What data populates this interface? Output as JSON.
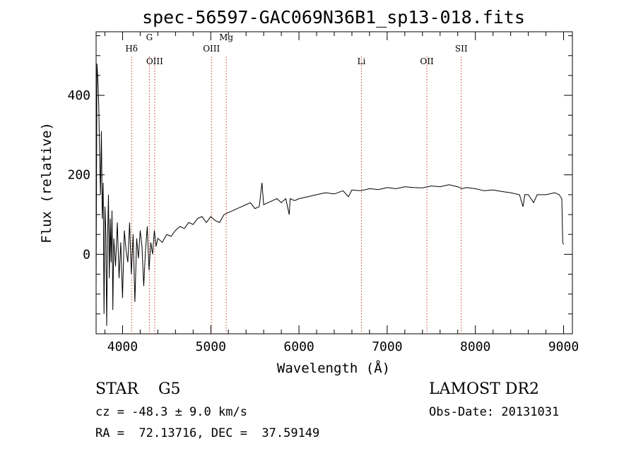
{
  "chart_data": {
    "type": "line",
    "title": "spec-56597-GAC069N36B1_sp13-018.fits",
    "xlabel": "Wavelength (Å)",
    "ylabel": "Flux (relative)",
    "xlim": [
      3700,
      9100
    ],
    "ylim": [
      -200,
      560
    ],
    "x_ticks": [
      4000,
      5000,
      6000,
      7000,
      8000,
      9000
    ],
    "x_tick_labels": [
      "4000",
      "5000",
      "6000",
      "7000",
      "8000",
      "9000"
    ],
    "y_ticks": [
      0,
      200,
      400
    ],
    "y_tick_labels": [
      "0",
      "200",
      "400"
    ],
    "grid": false,
    "series": [
      {
        "x": [
          3700,
          3710,
          3720,
          3730,
          3740,
          3750,
          3760,
          3770,
          3780,
          3790,
          3800,
          3810,
          3820,
          3830,
          3840,
          3850,
          3860,
          3870,
          3880,
          3890,
          3900,
          3920,
          3940,
          3960,
          3980,
          4000,
          4020,
          4040,
          4060,
          4080,
          4100,
          4120,
          4140,
          4160,
          4180,
          4200,
          4220,
          4240,
          4260,
          4280,
          4300,
          4320,
          4340,
          4360,
          4380,
          4400,
          4450,
          4500,
          4550,
          4600,
          4650,
          4700,
          4750,
          4800,
          4850,
          4900,
          4950,
          5000,
          5050,
          5100,
          5150,
          5200,
          5250,
          5300,
          5350,
          5400,
          5450,
          5500,
          5550,
          5580,
          5600,
          5650,
          5700,
          5750,
          5800,
          5850,
          5890,
          5900,
          5950,
          6000,
          6100,
          6200,
          6300,
          6400,
          6500,
          6560,
          6600,
          6700,
          6800,
          6900,
          7000,
          7100,
          7200,
          7300,
          7400,
          7500,
          7600,
          7700,
          7800,
          7850,
          7900,
          8000,
          8100,
          8200,
          8300,
          8400,
          8500,
          8540,
          8560,
          8600,
          8660,
          8700,
          8800,
          8900,
          8950,
          8980,
          8990,
          9000
        ],
        "y": [
          -80,
          480,
          440,
          380,
          250,
          150,
          310,
          90,
          180,
          -150,
          120,
          60,
          -180,
          40,
          150,
          -60,
          90,
          -20,
          110,
          -140,
          40,
          -30,
          80,
          -60,
          30,
          -110,
          60,
          10,
          -20,
          80,
          -50,
          50,
          -120,
          40,
          -10,
          60,
          20,
          -80,
          10,
          70,
          -40,
          30,
          0,
          60,
          20,
          40,
          30,
          50,
          45,
          60,
          70,
          65,
          80,
          75,
          90,
          95,
          80,
          95,
          85,
          80,
          100,
          105,
          110,
          115,
          120,
          125,
          130,
          115,
          120,
          180,
          125,
          130,
          135,
          140,
          130,
          140,
          100,
          140,
          135,
          140,
          145,
          150,
          155,
          152,
          160,
          145,
          162,
          160,
          165,
          163,
          168,
          165,
          170,
          168,
          167,
          172,
          170,
          175,
          170,
          165,
          168,
          165,
          160,
          162,
          158,
          155,
          150,
          120,
          150,
          150,
          130,
          150,
          150,
          155,
          150,
          140,
          30,
          25
        ]
      }
    ],
    "annotations": [
      {
        "label": "Hδ",
        "x": 4102
      },
      {
        "label": "G",
        "x": 4304
      },
      {
        "label": "OIII",
        "x": 4364
      },
      {
        "label": "OIII",
        "x": 5008
      },
      {
        "label": "Mg",
        "x": 5175
      },
      {
        "label": "Li",
        "x": 6708
      },
      {
        "label": "OII",
        "x": 7450
      },
      {
        "label": "SII",
        "x": 7840
      }
    ]
  },
  "info": {
    "class_line": "STAR    G5",
    "survey": "LAMOST DR2",
    "redshift": "cz = -48.3 ± 9.0 km/s",
    "obs_date": "Obs-Date: 20131031",
    "coords": "RA =  72.13716, DEC =  37.59149"
  }
}
